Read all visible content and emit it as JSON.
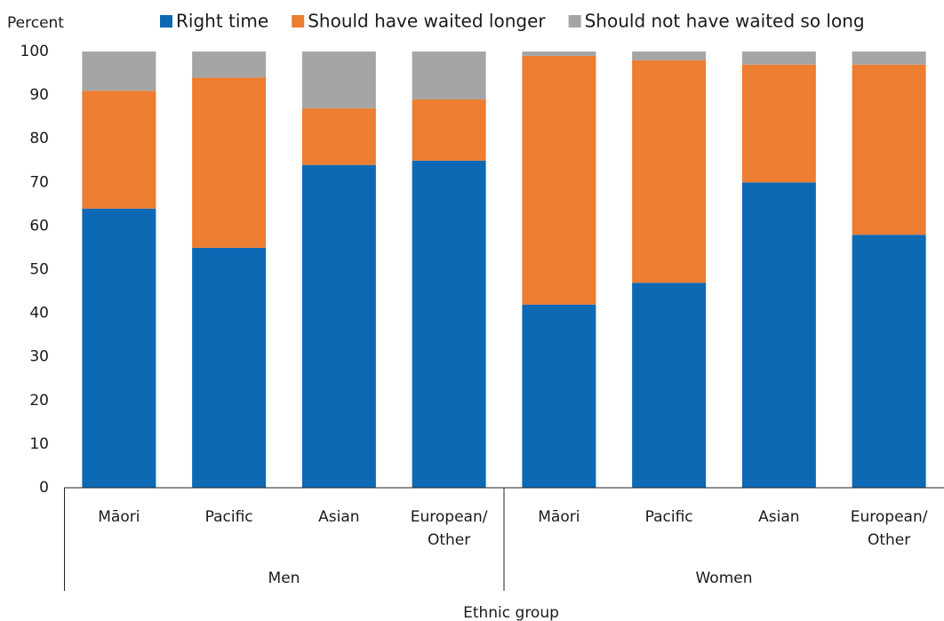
{
  "chart_data": {
    "type": "stacked_bar",
    "y_axis_label": "Percent",
    "x_axis_label": "Ethnic group",
    "groups": [
      "Men",
      "Women"
    ],
    "categories": [
      "Māori",
      "Pacific",
      "Asian",
      "European/\nOther",
      "Māori",
      "Pacific",
      "Asian",
      "European/\nOther"
    ],
    "series": [
      {
        "name": "Right time",
        "color": "#0e69b5",
        "values": [
          64,
          55,
          74,
          75,
          42,
          47,
          70,
          58
        ]
      },
      {
        "name": "Should have waited longer",
        "color": "#ed7d31",
        "values": [
          27,
          39,
          13,
          14,
          57,
          51,
          27,
          39
        ]
      },
      {
        "name": "Should not have waited so long",
        "color": "#a5a5a5",
        "values": [
          9,
          6,
          13,
          11,
          1,
          2,
          3,
          3
        ]
      }
    ],
    "ylim": [
      0,
      100
    ],
    "yticks": [
      0,
      10,
      20,
      30,
      40,
      50,
      60,
      70,
      80,
      90,
      100
    ],
    "grid": false,
    "legend_position": "top"
  }
}
